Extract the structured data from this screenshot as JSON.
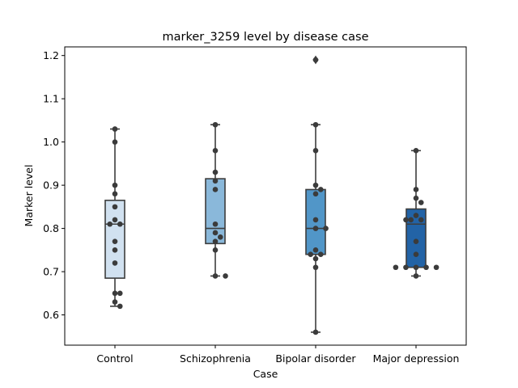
{
  "chart_data": {
    "type": "box",
    "title": "marker_3259 level by disease case",
    "xlabel": "Case",
    "ylabel": "Marker level",
    "ylim": [
      0.53,
      1.22
    ],
    "yticks": [
      0.6,
      0.7,
      0.8,
      0.9,
      1.0,
      1.1,
      1.2
    ],
    "ytick_labels": [
      "0.6",
      "0.7",
      "0.8",
      "0.9",
      "1.0",
      "1.1",
      "1.2"
    ],
    "categories": [
      "Control",
      "Schizophrenia",
      "Bipolar disorder",
      "Major depression"
    ],
    "colors": [
      "#d1e1f0",
      "#8ab8da",
      "#5196c8",
      "#2263a6"
    ],
    "boxes": [
      {
        "q1": 0.685,
        "median": 0.81,
        "q3": 0.865,
        "whisker_low": 0.62,
        "whisker_high": 1.03,
        "outliers": []
      },
      {
        "q1": 0.765,
        "median": 0.8,
        "q3": 0.915,
        "whisker_low": 0.69,
        "whisker_high": 1.04,
        "outliers": []
      },
      {
        "q1": 0.74,
        "median": 0.8,
        "q3": 0.89,
        "whisker_low": 0.56,
        "whisker_high": 1.04,
        "outliers": [
          1.19
        ]
      },
      {
        "q1": 0.71,
        "median": 0.81,
        "q3": 0.845,
        "whisker_low": 0.69,
        "whisker_high": 0.98,
        "outliers": []
      }
    ],
    "points": [
      [
        1.03,
        1.0,
        0.9,
        0.88,
        0.85,
        0.82,
        0.81,
        0.81,
        0.77,
        0.75,
        0.72,
        0.65,
        0.65,
        0.63,
        0.62
      ],
      [
        1.04,
        0.98,
        0.93,
        0.91,
        0.89,
        0.81,
        0.79,
        0.78,
        0.77,
        0.75,
        0.69,
        0.69
      ],
      [
        1.19,
        1.04,
        0.98,
        0.9,
        0.89,
        0.88,
        0.82,
        0.8,
        0.8,
        0.75,
        0.74,
        0.74,
        0.73,
        0.71,
        0.56
      ],
      [
        0.98,
        0.89,
        0.87,
        0.86,
        0.83,
        0.82,
        0.82,
        0.82,
        0.77,
        0.74,
        0.71,
        0.71,
        0.71,
        0.71,
        0.71,
        0.69
      ]
    ]
  }
}
